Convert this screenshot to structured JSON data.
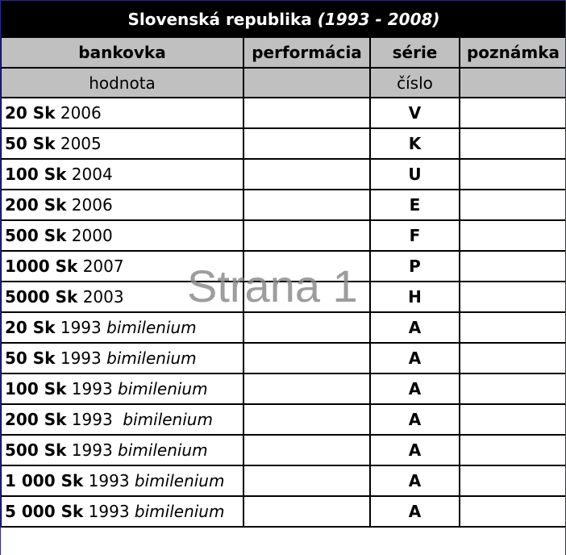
{
  "title": {
    "main": "Slovenská republika",
    "period": "(1993 - 2008)"
  },
  "headers": [
    "bankovka",
    "performácia",
    "série",
    "poznámka"
  ],
  "subheaders": [
    "hodnota",
    "",
    "číslo",
    ""
  ],
  "rows": [
    {
      "value": "20 Sk",
      "year": "2006",
      "note": "",
      "series": "V"
    },
    {
      "value": "50 Sk",
      "year": "2005",
      "note": "",
      "series": "K"
    },
    {
      "value": "100 Sk",
      "year": "2004",
      "note": "",
      "series": "U"
    },
    {
      "value": "200 Sk",
      "year": "2006",
      "note": "",
      "series": "E"
    },
    {
      "value": "500 Sk",
      "year": "2000",
      "note": "",
      "series": "F"
    },
    {
      "value": "1000 Sk",
      "year": "2007",
      "note": "",
      "series": "P"
    },
    {
      "value": "5000 Sk",
      "year": "2003",
      "note": "",
      "series": "H"
    },
    {
      "value": "20 Sk",
      "year": "1993",
      "note": "bimilenium",
      "series": "A"
    },
    {
      "value": "50 Sk",
      "year": "1993",
      "note": "bimilenium",
      "series": "A"
    },
    {
      "value": "100 Sk",
      "year": "1993",
      "note": "bimilenium",
      "series": "A"
    },
    {
      "value": "200 Sk",
      "year": "1993 ",
      "note": "bimilenium",
      "series": "A"
    },
    {
      "value": "500 Sk",
      "year": "1993",
      "note": "bimilenium",
      "series": "A"
    },
    {
      "value": "1 000 Sk",
      "year": "1993",
      "note": "bimilenium",
      "series": "A"
    },
    {
      "value": "5 000 Sk",
      "year": "1993",
      "note": "bimilenium",
      "series": "A"
    }
  ],
  "watermark": "Strana 1"
}
